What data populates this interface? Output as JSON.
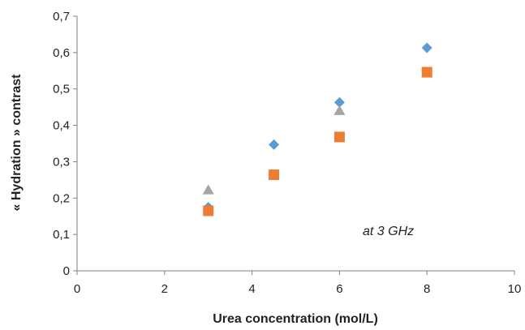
{
  "chart_data": {
    "type": "scatter",
    "title": "",
    "xlabel": "Urea concentration (mol/L)",
    "ylabel": "« Hydration » contrast",
    "xlim": [
      0,
      10
    ],
    "ylim": [
      0,
      0.7
    ],
    "x_ticks": [
      0,
      2,
      4,
      6,
      8,
      10
    ],
    "y_ticks": [
      0,
      0.1,
      0.2,
      0.3,
      0.4,
      0.5,
      0.6,
      0.7
    ],
    "x_tick_labels": [
      "0",
      "2",
      "4",
      "6",
      "8",
      "10"
    ],
    "y_tick_labels": [
      "0",
      "0,1",
      "0,2",
      "0,3",
      "0,4",
      "0,5",
      "0,6",
      "0,7"
    ],
    "grid": false,
    "legend": "none",
    "annotation": "at 3 GHz",
    "series": [
      {
        "marker": "diamond",
        "color": "#5B9BD5",
        "points": [
          [
            3,
            0.175
          ],
          [
            4.5,
            0.347
          ],
          [
            6,
            0.463
          ],
          [
            8,
            0.613
          ]
        ]
      },
      {
        "marker": "square",
        "color": "#ED7D31",
        "points": [
          [
            3,
            0.165
          ],
          [
            4.5,
            0.264
          ],
          [
            6,
            0.368
          ],
          [
            8,
            0.546
          ]
        ]
      },
      {
        "marker": "triangle",
        "color": "#A5A5A5",
        "points": [
          [
            3,
            0.222
          ],
          [
            6,
            0.44
          ]
        ]
      }
    ]
  }
}
